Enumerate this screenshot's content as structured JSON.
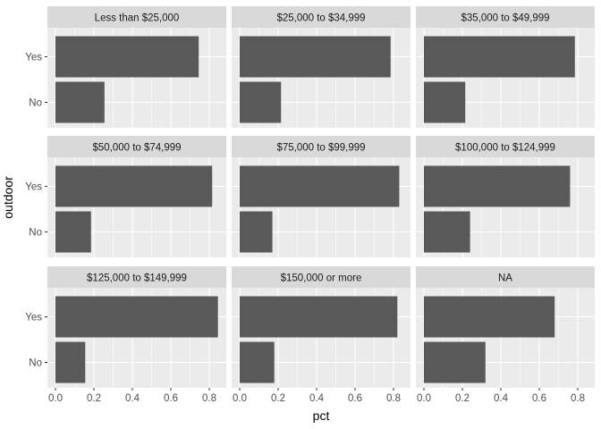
{
  "chart_data": {
    "type": "bar",
    "orientation": "horizontal",
    "facet_wrap": true,
    "xlabel": "pct",
    "ylabel": "outdoor",
    "xlim": [
      0,
      0.88
    ],
    "xticks": [
      0.0,
      0.2,
      0.4,
      0.6,
      0.8
    ],
    "xtick_labels": [
      "0.0",
      "0.2",
      "0.4",
      "0.6",
      "0.8"
    ],
    "categories": [
      "Yes",
      "No"
    ],
    "grid": true,
    "colors": {
      "bar": "#595959",
      "panel": "#ebebeb",
      "strip": "#d9d9d9",
      "grid": "#ffffff"
    },
    "panels": [
      {
        "title": "Less than $25,000",
        "values": [
          0.745,
          0.255
        ]
      },
      {
        "title": "$25,000 to $34,999",
        "values": [
          0.785,
          0.215
        ]
      },
      {
        "title": "$35,000 to $49,999",
        "values": [
          0.785,
          0.215
        ]
      },
      {
        "title": "$50,000 to $74,999",
        "values": [
          0.815,
          0.185
        ]
      },
      {
        "title": "$75,000 to $99,999",
        "values": [
          0.83,
          0.17
        ]
      },
      {
        "title": "$100,000 to $124,999",
        "values": [
          0.76,
          0.24
        ]
      },
      {
        "title": "$125,000 to $149,999",
        "values": [
          0.845,
          0.155
        ]
      },
      {
        "title": "$150,000 or more",
        "values": [
          0.82,
          0.18
        ]
      },
      {
        "title": "NA",
        "values": [
          0.68,
          0.32
        ]
      }
    ]
  }
}
